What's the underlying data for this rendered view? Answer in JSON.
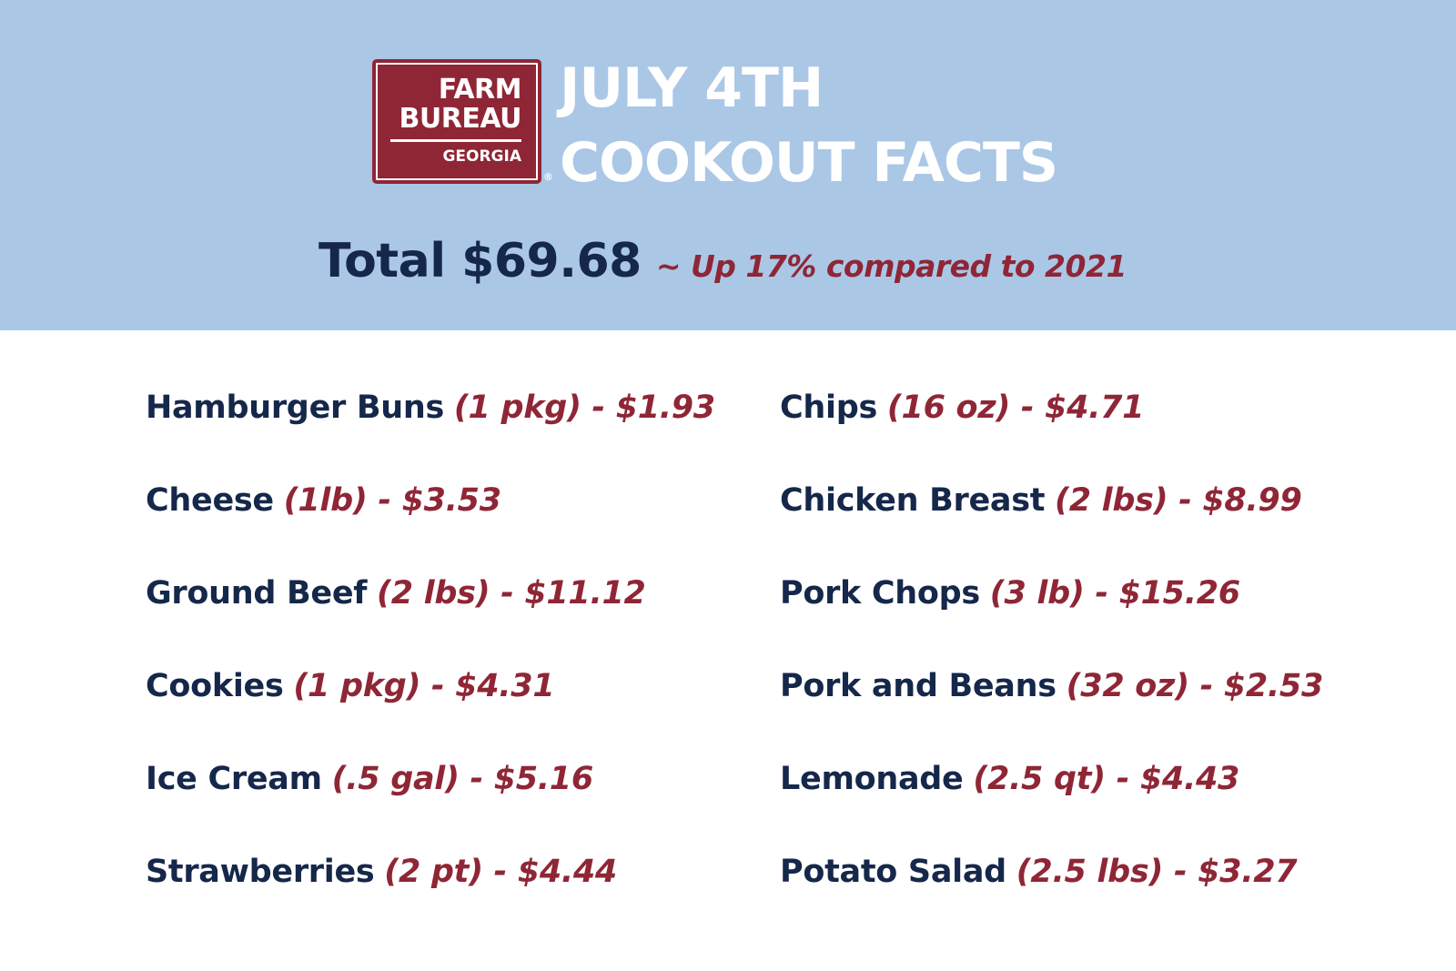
{
  "logo": {
    "line1": "FARM",
    "line2": "BUREAU",
    "line3": "GEORGIA",
    "registered_mark": "®"
  },
  "title": {
    "line1": "JULY 4TH",
    "line2": "COOKOUT FACTS"
  },
  "summary": {
    "total": "Total $69.68",
    "comparison": "~ Up 17% compared to 2021"
  },
  "colors": {
    "header_bg": "#abc7e6",
    "navy": "#15274a",
    "red": "#8f2636"
  },
  "items_left": [
    {
      "name": "Hamburger Buns",
      "detail": "(1 pkg) - $1.93"
    },
    {
      "name": "Cheese",
      "detail": "(1lb) - $3.53"
    },
    {
      "name": "Ground Beef",
      "detail": "(2 lbs) - $11.12"
    },
    {
      "name": "Cookies",
      "detail": "(1 pkg) - $4.31"
    },
    {
      "name": "Ice Cream",
      "detail": "(.5 gal) - $5.16"
    },
    {
      "name": "Strawberries",
      "detail": "(2 pt) - $4.44"
    }
  ],
  "items_right": [
    {
      "name": "Chips",
      "detail": "(16 oz) - $4.71"
    },
    {
      "name": "Chicken Breast",
      "detail": "(2 lbs) - $8.99"
    },
    {
      "name": "Pork Chops",
      "detail": "(3 lb) - $15.26"
    },
    {
      "name": "Pork and Beans",
      "detail": "(32 oz) - $2.53"
    },
    {
      "name": "Lemonade",
      "detail": "(2.5 qt) - $4.43"
    },
    {
      "name": "Potato Salad",
      "detail": "(2.5 lbs) - $3.27"
    }
  ]
}
